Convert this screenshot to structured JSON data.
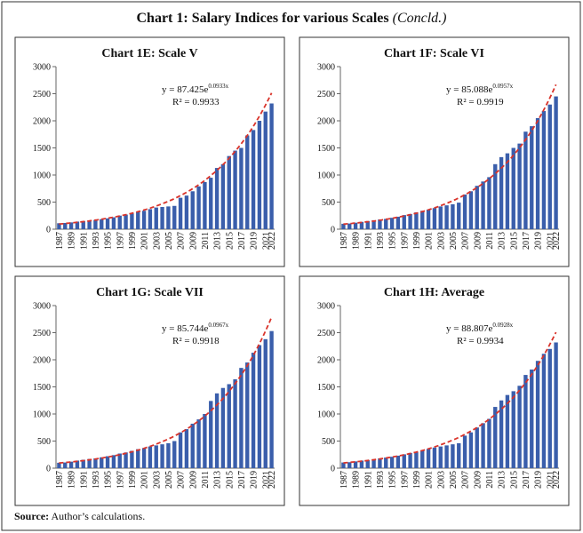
{
  "title": "Chart 1: Salary Indices for various Scales",
  "title_note": "(Concld.)",
  "source_label": "Source:",
  "source": "Author’s calculations.",
  "chart_data": [
    {
      "type": "bar",
      "title": "Chart 1E: Scale V",
      "categories": [
        "1987",
        null,
        "1989",
        null,
        "1991",
        null,
        "1993",
        null,
        "1995",
        null,
        "1997",
        null,
        "1999",
        null,
        "2001",
        null,
        "2003",
        null,
        "2005",
        null,
        "2007",
        null,
        "2009",
        null,
        "2011",
        null,
        "2013",
        null,
        "2015",
        null,
        "2017",
        null,
        "2019",
        null,
        "2021",
        "2022"
      ],
      "values": [
        110,
        115,
        125,
        140,
        150,
        160,
        170,
        185,
        200,
        220,
        250,
        270,
        290,
        320,
        340,
        370,
        400,
        410,
        420,
        430,
        580,
        620,
        700,
        790,
        870,
        950,
        1130,
        1200,
        1350,
        1450,
        1500,
        1730,
        1830,
        2000,
        2170,
        2320
      ],
      "color": "#3a5eab",
      "ylim": [
        0,
        3000
      ],
      "yticks": [
        0,
        500,
        1000,
        1500,
        2000,
        2500,
        3000
      ],
      "trendline": {
        "a": 87.425,
        "b": 0.0933,
        "color": "#d9342b",
        "equation": "y = 87.425e",
        "exponent": "0.0933x",
        "r_squared": "R² = 0.9933"
      }
    },
    {
      "type": "bar",
      "title": "Chart 1F: Scale VI",
      "categories": [
        "1987",
        null,
        "1989",
        null,
        "1991",
        null,
        "1993",
        null,
        "1995",
        null,
        "1997",
        null,
        "1999",
        null,
        "2001",
        null,
        "2003",
        null,
        "2005",
        null,
        "2007",
        null,
        "2009",
        null,
        "2011",
        null,
        "2013",
        null,
        "2015",
        null,
        "2017",
        null,
        "2019",
        null,
        "2021",
        "2022"
      ],
      "values": [
        100,
        105,
        120,
        135,
        150,
        165,
        180,
        190,
        210,
        230,
        260,
        280,
        310,
        340,
        360,
        390,
        420,
        440,
        460,
        490,
        640,
        700,
        800,
        880,
        960,
        1200,
        1330,
        1400,
        1500,
        1580,
        1800,
        1900,
        2050,
        2180,
        2300,
        2450
      ],
      "color": "#3a5eab",
      "ylim": [
        0,
        3000
      ],
      "yticks": [
        0,
        500,
        1000,
        1500,
        2000,
        2500,
        3000
      ],
      "trendline": {
        "a": 85.088,
        "b": 0.0957,
        "color": "#d9342b",
        "equation": "y = 85.088e",
        "exponent": "0.0957x",
        "r_squared": "R² = 0.9919"
      }
    },
    {
      "type": "bar",
      "title": "Chart 1G: Scale VII",
      "categories": [
        "1987",
        null,
        "1989",
        null,
        "1991",
        null,
        "1993",
        null,
        "1995",
        null,
        "1997",
        null,
        "1999",
        null,
        "2001",
        null,
        "2003",
        null,
        "2005",
        null,
        "2007",
        null,
        "2009",
        null,
        "2011",
        null,
        "2013",
        null,
        "2015",
        null,
        "2017",
        null,
        "2019",
        null,
        "2021",
        "2022"
      ],
      "values": [
        100,
        105,
        120,
        140,
        155,
        170,
        180,
        200,
        220,
        240,
        270,
        290,
        320,
        350,
        370,
        400,
        420,
        440,
        460,
        500,
        660,
        720,
        820,
        900,
        1000,
        1240,
        1380,
        1480,
        1550,
        1640,
        1850,
        1950,
        2130,
        2270,
        2380,
        2530
      ],
      "color": "#3a5eab",
      "ylim": [
        0,
        3000
      ],
      "yticks": [
        0,
        500,
        1000,
        1500,
        2000,
        2500,
        3000
      ],
      "trendline": {
        "a": 85.744,
        "b": 0.0967,
        "color": "#d9342b",
        "equation": "y = 85.744e",
        "exponent": "0.0967x",
        "r_squared": "R² = 0.9918"
      }
    },
    {
      "type": "bar",
      "title": "Chart 1H: Average",
      "categories": [
        "1987",
        null,
        "1989",
        null,
        "1991",
        null,
        "1993",
        null,
        "1995",
        null,
        "1997",
        null,
        "1999",
        null,
        "2001",
        null,
        "2003",
        null,
        "2005",
        null,
        "2007",
        null,
        "2009",
        null,
        "2011",
        null,
        "2013",
        null,
        "2015",
        null,
        "2017",
        null,
        "2019",
        null,
        "2021",
        "2022"
      ],
      "values": [
        105,
        110,
        125,
        140,
        150,
        165,
        180,
        195,
        210,
        230,
        255,
        280,
        300,
        330,
        355,
        380,
        400,
        420,
        440,
        460,
        600,
        660,
        750,
        830,
        910,
        1130,
        1250,
        1350,
        1420,
        1520,
        1720,
        1820,
        1980,
        2110,
        2200,
        2320
      ],
      "color": "#3a5eab",
      "ylim": [
        0,
        3000
      ],
      "yticks": [
        0,
        500,
        1000,
        1500,
        2000,
        2500,
        3000
      ],
      "trendline": {
        "a": 88.807,
        "b": 0.0928,
        "color": "#d9342b",
        "equation": "y = 88.807e",
        "exponent": "0.0928x",
        "r_squared": "R² = 0.9934"
      }
    }
  ]
}
